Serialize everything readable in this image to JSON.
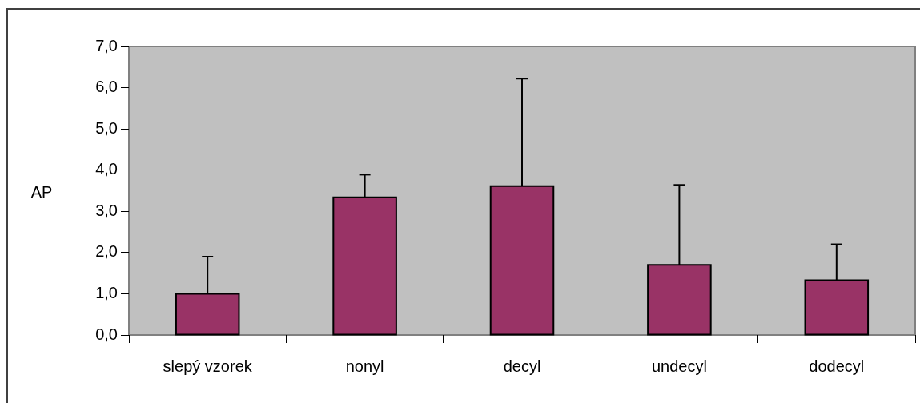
{
  "chart_data": {
    "type": "bar",
    "ylabel": "AP",
    "categories": [
      "slepý vzorek",
      "nonyl",
      "decyl",
      "undecyl",
      "dodecyl"
    ],
    "series": [
      {
        "color": "#993366",
        "values": [
          1.0,
          3.34,
          3.61,
          1.7,
          1.33
        ],
        "errors": [
          [
            1.0,
            1.9
          ],
          [
            3.34,
            3.89
          ],
          [
            3.61,
            6.22
          ],
          [
            1.7,
            3.64
          ],
          [
            1.33,
            2.2
          ]
        ]
      }
    ],
    "ylim": [
      0,
      7
    ],
    "yticks": [
      {
        "value": 0,
        "label": "0,0"
      },
      {
        "value": 1,
        "label": "1,0"
      },
      {
        "value": 2,
        "label": "2,0"
      },
      {
        "value": 3,
        "label": "3,0"
      },
      {
        "value": 4,
        "label": "4,0"
      },
      {
        "value": 5,
        "label": "5,0"
      },
      {
        "value": 6,
        "label": "6,0"
      },
      {
        "value": 7,
        "label": "7,0"
      }
    ],
    "grid": false,
    "legend": false
  }
}
